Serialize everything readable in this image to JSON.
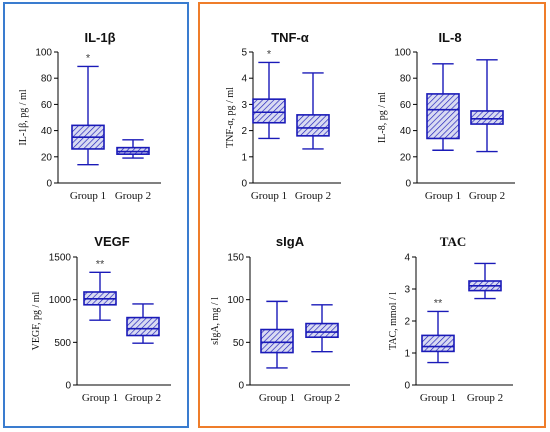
{
  "colors": {
    "box_stroke": "#1a1ab8",
    "hatch": "#1a1ab8",
    "axis": "#000000",
    "frame_left": "#3a7ccf",
    "frame_right": "#ef7d2a"
  },
  "chart_data": [
    {
      "type": "boxplot",
      "title": "IL-1β",
      "ylabel": "IL-1β,  pg / ml",
      "ylim": [
        0,
        100
      ],
      "yticks": [
        0,
        20,
        40,
        60,
        80,
        100
      ],
      "categories": [
        "Group 1",
        "Group 2"
      ],
      "series": [
        {
          "category": "Group 1",
          "min": 14,
          "q1": 26,
          "median": 35,
          "q3": 44,
          "max": 89,
          "significance": "*"
        },
        {
          "category": "Group 2",
          "min": 19,
          "q1": 22,
          "median": 24,
          "q3": 27,
          "max": 33
        }
      ]
    },
    {
      "type": "boxplot",
      "title": "TNF-α",
      "ylabel": "TNF-α,  pg / ml",
      "ylim": [
        0,
        5
      ],
      "yticks": [
        0,
        1,
        2,
        3,
        4,
        5
      ],
      "categories": [
        "Group 1",
        "Group 2"
      ],
      "series": [
        {
          "category": "Group 1",
          "min": 1.7,
          "q1": 2.3,
          "median": 2.7,
          "q3": 3.2,
          "max": 4.6,
          "significance": "*"
        },
        {
          "category": "Group 2",
          "min": 1.3,
          "q1": 1.8,
          "median": 2.1,
          "q3": 2.6,
          "max": 4.2
        }
      ]
    },
    {
      "type": "boxplot",
      "title": "IL-8",
      "ylabel": "IL-8,  pg / ml",
      "ylim": [
        0,
        100
      ],
      "yticks": [
        0,
        20,
        40,
        60,
        80,
        100
      ],
      "categories": [
        "Group 1",
        "Group 2"
      ],
      "series": [
        {
          "category": "Group 1",
          "min": 25,
          "q1": 34,
          "median": 56,
          "q3": 68,
          "max": 91
        },
        {
          "category": "Group 2",
          "min": 24,
          "q1": 45,
          "median": 49,
          "q3": 55,
          "max": 94
        }
      ]
    },
    {
      "type": "boxplot",
      "title": "VEGF",
      "ylabel": "VEGF,  pg / ml",
      "ylim": [
        0,
        1500
      ],
      "yticks": [
        0,
        500,
        1000,
        1500
      ],
      "categories": [
        "Group 1",
        "Group 2"
      ],
      "series": [
        {
          "category": "Group 1",
          "min": 760,
          "q1": 940,
          "median": 1010,
          "q3": 1090,
          "max": 1320,
          "significance": "**"
        },
        {
          "category": "Group 2",
          "min": 490,
          "q1": 580,
          "median": 660,
          "q3": 790,
          "max": 950
        }
      ]
    },
    {
      "type": "boxplot",
      "title": "sIgA",
      "ylabel": "sIgA,  mg / l",
      "ylim": [
        0,
        150
      ],
      "yticks": [
        0,
        50,
        100,
        150
      ],
      "categories": [
        "Group 1",
        "Group 2"
      ],
      "series": [
        {
          "category": "Group 1",
          "min": 20,
          "q1": 38,
          "median": 50,
          "q3": 65,
          "max": 98
        },
        {
          "category": "Group 2",
          "min": 39,
          "q1": 56,
          "median": 62,
          "q3": 72,
          "max": 94
        }
      ]
    },
    {
      "type": "boxplot",
      "title": "TAC",
      "ylabel": "TAC, mmol / l",
      "ylim": [
        0,
        4
      ],
      "yticks": [
        0,
        1,
        2,
        3,
        4
      ],
      "categories": [
        "Group 1",
        "Group 2"
      ],
      "series": [
        {
          "category": "Group 1",
          "min": 0.7,
          "q1": 1.05,
          "median": 1.2,
          "q3": 1.55,
          "max": 2.3,
          "significance": "**"
        },
        {
          "category": "Group 2",
          "min": 2.7,
          "q1": 2.95,
          "median": 3.1,
          "q3": 3.25,
          "max": 3.8
        }
      ]
    }
  ]
}
